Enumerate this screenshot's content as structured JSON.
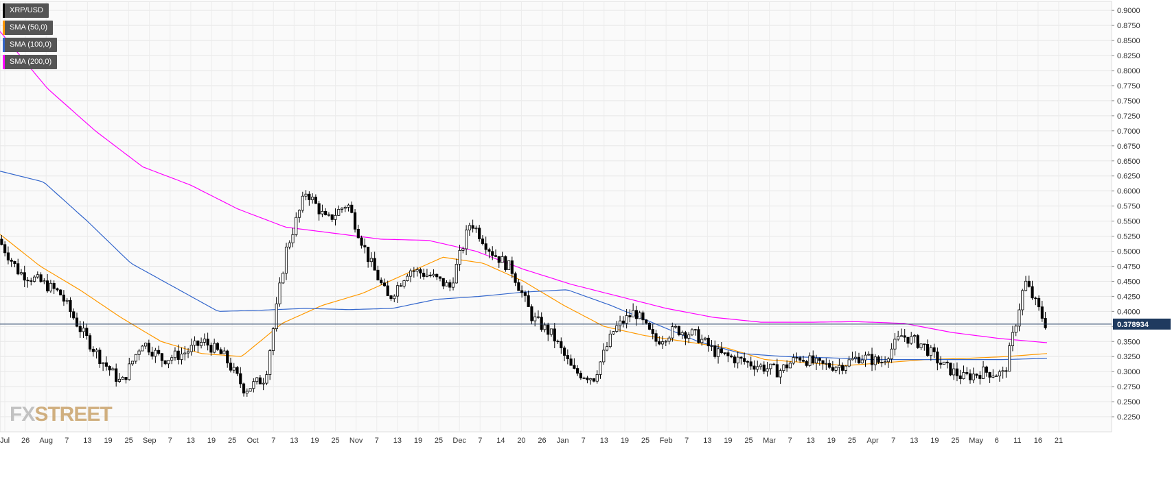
{
  "legend": {
    "items": [
      {
        "label": "XRP/USD",
        "color": "#000000"
      },
      {
        "label": "SMA (50,0)",
        "color": "#ff9900"
      },
      {
        "label": "SMA (100,0)",
        "color": "#3366cc"
      },
      {
        "label": "SMA (200,0)",
        "color": "#ff00ff"
      }
    ]
  },
  "logo": {
    "part1": "FX",
    "part2": "STREET"
  },
  "chart_data": {
    "type": "candlestick",
    "title": "",
    "symbol": "XRP/USD",
    "ylim": [
      0.2,
      0.915
    ],
    "y_ticks": [
      "0.9000",
      "0.8750",
      "0.8500",
      "0.8250",
      "0.8000",
      "0.7750",
      "0.7500",
      "0.7250",
      "0.7000",
      "0.6750",
      "0.6500",
      "0.6250",
      "0.6000",
      "0.5750",
      "0.5500",
      "0.5250",
      "0.5000",
      "0.4750",
      "0.4500",
      "0.4250",
      "0.4000",
      "0.3750",
      "0.3500",
      "0.3250",
      "0.3000",
      "0.2750",
      "0.2500",
      "0.2250"
    ],
    "x_ticks": [
      "Jul",
      "26",
      "Aug",
      "7",
      "13",
      "19",
      "25",
      "Sep",
      "7",
      "13",
      "19",
      "25",
      "Oct",
      "7",
      "13",
      "19",
      "25",
      "Nov",
      "7",
      "13",
      "19",
      "25",
      "Dec",
      "7",
      "14",
      "20",
      "26",
      "Jan",
      "7",
      "13",
      "19",
      "25",
      "Feb",
      "7",
      "13",
      "19",
      "25",
      "Mar",
      "7",
      "13",
      "19",
      "25",
      "Apr",
      "7",
      "13",
      "19",
      "25",
      "May",
      "6",
      "11",
      "16",
      "21"
    ],
    "current_price": "0.378934",
    "grid": true,
    "legend_position": "top-left",
    "sma": [
      {
        "name": "SMA (50,0)",
        "color": "#ff9900",
        "values": [
          0.528,
          0.475,
          0.435,
          0.39,
          0.35,
          0.33,
          0.325,
          0.38,
          0.41,
          0.43,
          0.46,
          0.49,
          0.48,
          0.45,
          0.41,
          0.375,
          0.36,
          0.35,
          0.34,
          0.32,
          0.315,
          0.31,
          0.315,
          0.32,
          0.322,
          0.325,
          0.33
        ]
      },
      {
        "name": "SMA (100,0)",
        "color": "#3366cc",
        "values": [
          0.633,
          0.615,
          0.55,
          0.48,
          0.44,
          0.4,
          0.402,
          0.405,
          0.403,
          0.405,
          0.42,
          0.425,
          0.432,
          0.436,
          0.41,
          0.38,
          0.35,
          0.33,
          0.325,
          0.323,
          0.32,
          0.32,
          0.32,
          0.32,
          0.322
        ]
      },
      {
        "name": "SMA (200,0)",
        "color": "#ff00ff",
        "values": [
          0.865,
          0.77,
          0.7,
          0.64,
          0.61,
          0.57,
          0.54,
          0.53,
          0.52,
          0.518,
          0.5,
          0.47,
          0.445,
          0.425,
          0.405,
          0.39,
          0.382,
          0.382,
          0.383,
          0.38,
          0.365,
          0.355,
          0.348
        ]
      }
    ],
    "price_path": [
      0.52,
      0.465,
      0.45,
      0.43,
      0.37,
      0.32,
      0.28,
      0.35,
      0.32,
      0.33,
      0.35,
      0.325,
      0.27,
      0.29,
      0.5,
      0.6,
      0.55,
      0.58,
      0.49,
      0.42,
      0.47,
      0.46,
      0.44,
      0.55,
      0.5,
      0.47,
      0.39,
      0.36,
      0.3,
      0.29,
      0.37,
      0.4,
      0.35,
      0.37,
      0.36,
      0.33,
      0.32,
      0.31,
      0.3,
      0.325,
      0.31,
      0.31,
      0.325,
      0.315,
      0.36,
      0.345,
      0.31,
      0.29,
      0.3,
      0.295,
      0.45,
      0.38
    ]
  }
}
